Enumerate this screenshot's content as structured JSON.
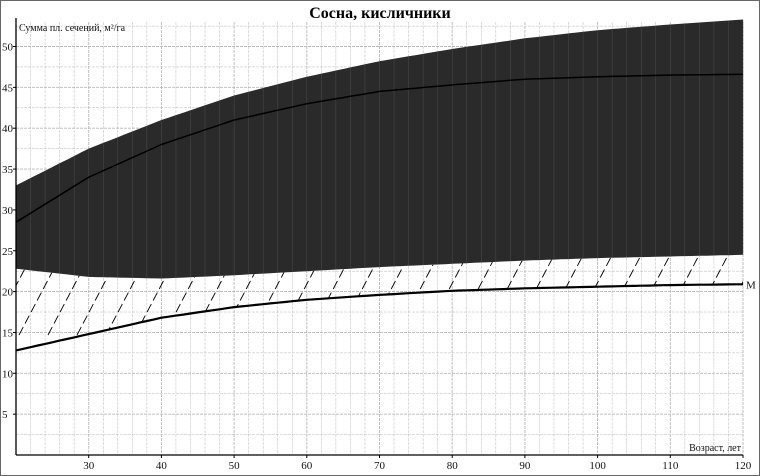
{
  "chart_data": {
    "type": "area",
    "title": "Сосна, кисличники",
    "ylabel": "Сумма пл. сечений, м²/га",
    "xlabel": "Возраст, лет",
    "xlim": [
      20,
      120
    ],
    "ylim": [
      0,
      53
    ],
    "grid": true,
    "x_ticks": [
      30,
      40,
      50,
      60,
      70,
      80,
      90,
      100,
      110,
      120
    ],
    "y_ticks": [
      5,
      10,
      15,
      20,
      25,
      30,
      35,
      40,
      45,
      50
    ],
    "x": [
      20,
      30,
      40,
      50,
      60,
      70,
      80,
      90,
      100,
      110,
      120
    ],
    "band_upper": [
      33,
      37.5,
      41,
      44,
      46.3,
      48.2,
      49.7,
      51,
      52,
      52.7,
      53.3
    ],
    "band_lower": [
      22.8,
      21.8,
      21.6,
      22,
      22.5,
      23,
      23.4,
      23.8,
      24.1,
      24.3,
      24.5
    ],
    "band_center": [
      28.5,
      34,
      38,
      41,
      43,
      44.5,
      45.3,
      46,
      46.3,
      46.5,
      46.6
    ],
    "series": [
      {
        "name": "M",
        "values": [
          12.8,
          14.8,
          16.8,
          18.1,
          19,
          19.6,
          20.1,
          20.4,
          20.6,
          20.8,
          20.9
        ]
      }
    ],
    "colors": {
      "band": "#2a2a2a",
      "line": "#000000",
      "grid": "#b8b8b8"
    }
  }
}
